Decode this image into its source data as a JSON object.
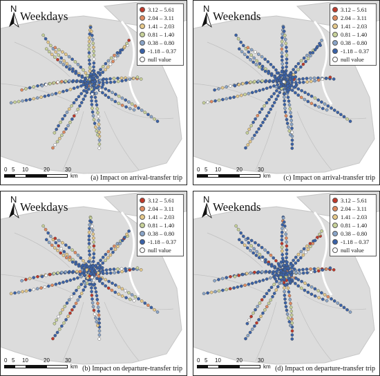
{
  "north_label": "N",
  "panels": [
    {
      "title": "Weekdays",
      "caption": "(a) Impact on arrival-transfer trip"
    },
    {
      "title": "Weekends",
      "caption": "(c) Impact on arrival-transfer trip"
    },
    {
      "title": "Weekdays",
      "caption": "(b) Impact on departure-transfer trip"
    },
    {
      "title": "Weekends",
      "caption": "(d) Impact on departure-transfer trip"
    }
  ],
  "legend": [
    {
      "label": "3.12 – 5.61",
      "color": "#c0392b"
    },
    {
      "label": "2.04 – 3.11",
      "color": "#e08a60"
    },
    {
      "label": "1.41 – 2.03",
      "color": "#e6c98a"
    },
    {
      "label": "0.81 – 1.40",
      "color": "#c8d29a"
    },
    {
      "label": "0.38 – 0.80",
      "color": "#8aa5c8"
    },
    {
      "label": "-1.18 – 0.37",
      "color": "#3a62a8"
    },
    {
      "label": "null value",
      "color": "#ffffff"
    }
  ],
  "scale": {
    "ticks": [
      "0",
      "5",
      "10",
      "20",
      "30"
    ],
    "unit": "km"
  }
}
